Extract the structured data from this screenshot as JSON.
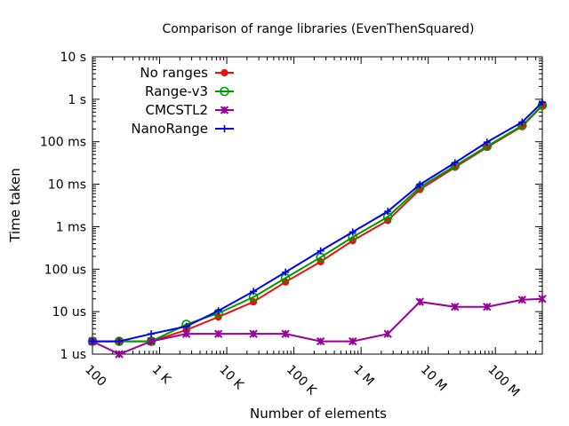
{
  "chart_data": {
    "type": "line",
    "title": "Comparison of range libraries (EvenThenSquared)",
    "xlabel": "Number of elements",
    "ylabel": "Time taken",
    "xscale": "log",
    "yscale": "log",
    "xlim": [
      100,
      500000000
    ],
    "ylim": [
      1e-06,
      10
    ],
    "grid": false,
    "legend": "top-left",
    "x_ticks": [
      {
        "value": 100,
        "label": "100"
      },
      {
        "value": 1000,
        "label": "1 K"
      },
      {
        "value": 10000,
        "label": "10 K"
      },
      {
        "value": 100000,
        "label": "100 K"
      },
      {
        "value": 1000000,
        "label": "1 M"
      },
      {
        "value": 10000000,
        "label": "10 M"
      },
      {
        "value": 100000000,
        "label": "100 M"
      }
    ],
    "y_ticks": [
      {
        "value": 1e-06,
        "label": "1 us"
      },
      {
        "value": 1e-05,
        "label": "10 us"
      },
      {
        "value": 0.0001,
        "label": "100 us"
      },
      {
        "value": 0.001,
        "label": "1 ms"
      },
      {
        "value": 0.01,
        "label": "10 ms"
      },
      {
        "value": 0.1,
        "label": "100 ms"
      },
      {
        "value": 1,
        "label": "1  s"
      },
      {
        "value": 10,
        "label": "10  s"
      }
    ],
    "x": [
      100,
      250,
      750,
      2500,
      7500,
      25000,
      75000,
      250000,
      750000,
      2500000,
      7500000,
      25000000,
      75000000,
      250000000,
      500000000
    ],
    "series": [
      {
        "name": "No ranges",
        "color": "#e8110c",
        "marker": "filled-circle",
        "values": [
          2e-06,
          2e-06,
          2e-06,
          3.7e-06,
          7.5e-06,
          1.7e-05,
          5e-05,
          0.00015,
          0.00047,
          0.0014,
          0.0075,
          0.025,
          0.074,
          0.23,
          0.7
        ]
      },
      {
        "name": "Range-v3",
        "color": "#009900",
        "marker": "open-circle",
        "values": [
          2e-06,
          2e-06,
          2e-06,
          5e-06,
          9.2e-06,
          2.2e-05,
          6.2e-05,
          0.00019,
          0.00057,
          0.0017,
          0.0085,
          0.027,
          0.078,
          0.24,
          0.72
        ]
      },
      {
        "name": "CMCSTL2",
        "color": "#990099",
        "marker": "asterisk",
        "values": [
          2e-06,
          1e-06,
          2e-06,
          3e-06,
          3e-06,
          3e-06,
          3e-06,
          2e-06,
          2e-06,
          3e-06,
          1.7e-05,
          1.3e-05,
          1.3e-05,
          1.9e-05,
          2e-05
        ]
      },
      {
        "name": "NanoRange",
        "color": "#0000ee",
        "marker": "plus",
        "values": [
          2e-06,
          2e-06,
          3e-06,
          4.5e-06,
          1.05e-05,
          3e-05,
          8.5e-05,
          0.00027,
          0.00075,
          0.0023,
          0.0098,
          0.032,
          0.098,
          0.29,
          0.85
        ]
      }
    ]
  }
}
